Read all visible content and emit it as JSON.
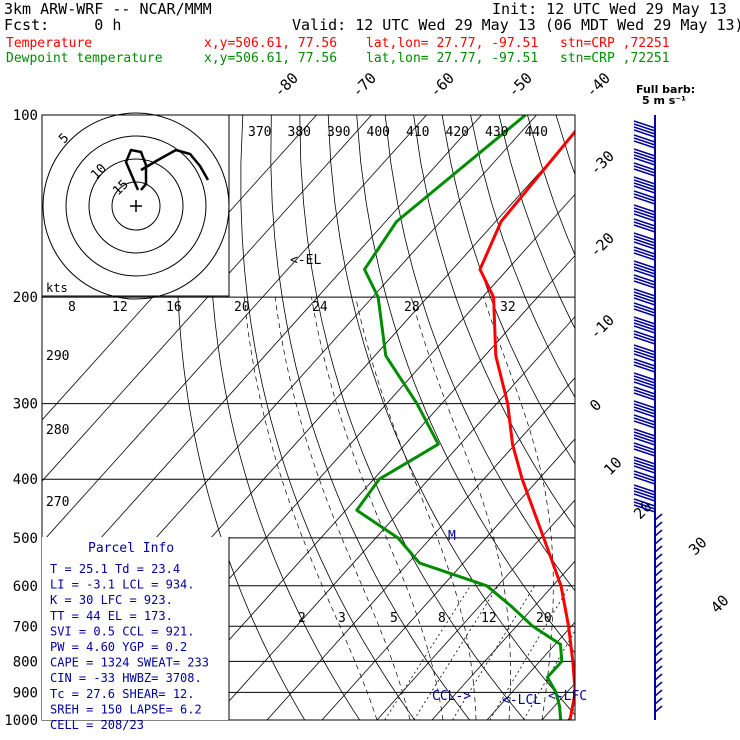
{
  "header": {
    "model": "3km ARW-WRF -- NCAR/MMM",
    "init": "Init: 12 UTC Wed 29 May 13",
    "fcst": "Fcst:     0 h",
    "valid": "Valid: 12 UTC Wed 29 May 13 (06 MDT Wed 29 May 13)",
    "temp_label": "Temperature",
    "dew_label": "Dewpoint temperature",
    "xy": "x,y=506.61, 77.56",
    "latlon": "lat,lon= 27.77, -97.51",
    "stn": "stn=CRP ,72251",
    "full_barb_1": "Full barb:",
    "full_barb_2": "5 m s⁻¹"
  },
  "colors": {
    "temperature": "#ff0000",
    "dewpoint": "#008c00",
    "wind": "#0000a0",
    "text_blue": "#0000a0"
  },
  "chart_data": {
    "type": "line",
    "diagram": "skew-T log-p",
    "pressure_levels": [
      100,
      200,
      300,
      400,
      500,
      600,
      700,
      800,
      900,
      1000
    ],
    "isotherm_labels": [
      "-80",
      "-70",
      "-60",
      "-50",
      "-40",
      "-30",
      "-20",
      "-10",
      "0",
      "10",
      "20",
      "30",
      "40"
    ],
    "theta_top_labels": [
      "370",
      "380",
      "390",
      "400",
      "410",
      "420",
      "430",
      "440"
    ],
    "theta_left_labels": [
      "290",
      "280",
      "270"
    ],
    "hodo_speed_labels": [
      "8",
      "12",
      "16",
      "20",
      "24",
      "28",
      "32"
    ],
    "mixing_ratio_labels": [
      "2",
      "3",
      "5",
      "8",
      "12",
      "20"
    ],
    "temperature": {
      "name": "Temperature",
      "points": [
        {
          "p": 100,
          "t": -70.5
        },
        {
          "p": 150,
          "t": -69
        },
        {
          "p": 180,
          "t": -65
        },
        {
          "p": 200,
          "t": -58
        },
        {
          "p": 250,
          "t": -48
        },
        {
          "p": 300,
          "t": -38
        },
        {
          "p": 350,
          "t": -30.5
        },
        {
          "p": 400,
          "t": -23
        },
        {
          "p": 500,
          "t": -9.5
        },
        {
          "p": 600,
          "t": 1.5
        },
        {
          "p": 700,
          "t": 9.5
        },
        {
          "p": 800,
          "t": 16
        },
        {
          "p": 900,
          "t": 21.5
        },
        {
          "p": 1000,
          "t": 25.1
        }
      ]
    },
    "dewpoint": {
      "name": "Dewpoint temperature",
      "points": [
        {
          "p": 100,
          "t": -82
        },
        {
          "p": 150,
          "t": -88
        },
        {
          "p": 180,
          "t": -86
        },
        {
          "p": 200,
          "t": -79
        },
        {
          "p": 250,
          "t": -68
        },
        {
          "p": 300,
          "t": -54.5
        },
        {
          "p": 350,
          "t": -44
        },
        {
          "p": 400,
          "t": -49
        },
        {
          "p": 450,
          "t": -48
        },
        {
          "p": 500,
          "t": -36
        },
        {
          "p": 550,
          "t": -28
        },
        {
          "p": 600,
          "t": -12
        },
        {
          "p": 650,
          "t": -4
        },
        {
          "p": 700,
          "t": 3
        },
        {
          "p": 750,
          "t": 11
        },
        {
          "p": 800,
          "t": 14
        },
        {
          "p": 850,
          "t": 14
        },
        {
          "p": 900,
          "t": 18
        },
        {
          "p": 950,
          "t": 21
        },
        {
          "p": 1000,
          "t": 23.4
        }
      ]
    },
    "annotations": {
      "el": "<-EL",
      "m": "M",
      "ccl": "CCL->",
      "lcl": "<-LCL",
      "lfc": "<-LFC",
      "kts": "kts"
    },
    "parcel_info": {
      "title": "Parcel Info",
      "rows": [
        "T  =   25.1  Td =  23.4",
        "LI =   -3.1  LCL =  934.",
        "K  =     30  LFC =  923.",
        "TT =     44  EL  =  173.",
        "SVI =   0.5  CCL =  921.",
        "PW =   4.60  YGP =   0.2",
        "CAPE = 1324  SWEAT=  233",
        "CIN =   -33  HWBZ= 3708.",
        "Tc =   27.6  SHEAR=  12.",
        "SREH =  150  LAPSE=  6.2",
        "CELL = 208/23"
      ]
    }
  }
}
